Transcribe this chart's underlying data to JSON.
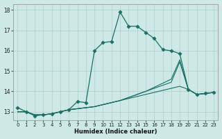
{
  "xlabel": "Humidex (Indice chaleur)",
  "ylabel": "",
  "bg_color": "#cde8e5",
  "grid_color": "#aecfcc",
  "line_color": "#1a6e66",
  "xlim": [
    -0.5,
    23.5
  ],
  "ylim": [
    12.6,
    18.3
  ],
  "yticks": [
    13,
    14,
    15,
    16,
    17,
    18
  ],
  "xticks": [
    0,
    1,
    2,
    3,
    4,
    5,
    6,
    7,
    8,
    9,
    10,
    11,
    12,
    13,
    14,
    15,
    16,
    17,
    18,
    19,
    20,
    21,
    22,
    23
  ],
  "series": [
    {
      "y": [
        13.2,
        13.0,
        12.8,
        12.85,
        12.9,
        13.0,
        13.1,
        13.5,
        13.45,
        16.0,
        16.4,
        16.45,
        17.9,
        17.2,
        17.2,
        16.9,
        16.6,
        16.05,
        16.0,
        15.85,
        14.1,
        13.85,
        13.9,
        13.95
      ],
      "marker": "D",
      "markersize": 2.5,
      "linewidth": 0.9
    },
    {
      "y": [
        13.0,
        13.0,
        12.85,
        12.85,
        12.9,
        13.0,
        13.1,
        13.15,
        13.2,
        13.25,
        13.35,
        13.45,
        13.55,
        13.65,
        13.75,
        13.85,
        13.95,
        14.05,
        14.15,
        14.25,
        14.1,
        13.85,
        13.9,
        13.95
      ],
      "marker": null,
      "markersize": 0,
      "linewidth": 0.8
    },
    {
      "y": [
        13.0,
        13.0,
        12.85,
        12.85,
        12.9,
        13.0,
        13.1,
        13.15,
        13.2,
        13.25,
        13.35,
        13.45,
        13.55,
        13.7,
        13.85,
        14.0,
        14.15,
        14.3,
        14.45,
        15.45,
        14.1,
        13.85,
        13.9,
        13.95
      ],
      "marker": null,
      "markersize": 0,
      "linewidth": 0.8
    },
    {
      "y": [
        13.0,
        13.0,
        12.85,
        12.85,
        12.9,
        13.0,
        13.1,
        13.15,
        13.2,
        13.25,
        13.35,
        13.45,
        13.55,
        13.7,
        13.85,
        14.0,
        14.2,
        14.4,
        14.6,
        15.55,
        14.1,
        13.85,
        13.9,
        13.95
      ],
      "marker": null,
      "markersize": 0,
      "linewidth": 0.8
    }
  ],
  "figsize": [
    3.2,
    2.0
  ],
  "dpi": 100
}
